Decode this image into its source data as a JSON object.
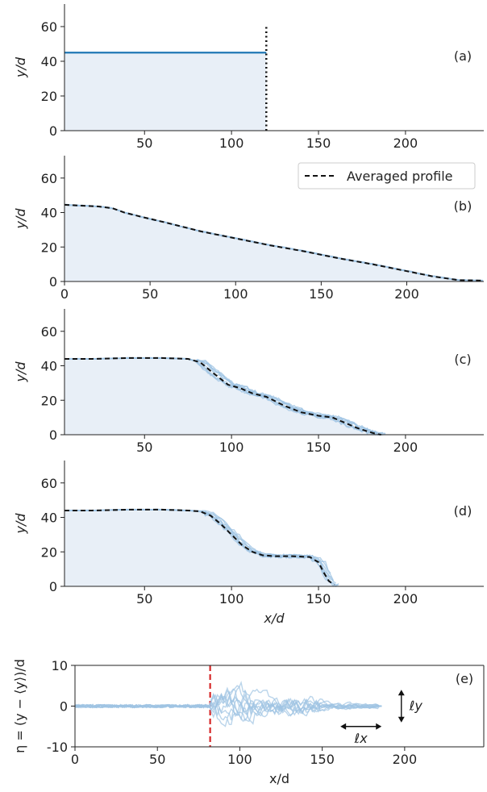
{
  "colors": {
    "profile": "#1f77b4",
    "fill": "#e8eff7",
    "realization": "#9ec3e3",
    "averaged": "#111111",
    "marker_dashed": "#d62728"
  },
  "chart_data": [
    {
      "id": "a",
      "type": "area",
      "panel_label": "(a)",
      "ylabel": "y/d",
      "xlabel": "",
      "xlim": [
        4,
        245
      ],
      "ylim": [
        0,
        73
      ],
      "xticks": [
        50,
        100,
        150,
        200
      ],
      "yticks": [
        0,
        20,
        40,
        60
      ],
      "grid": false,
      "series": [
        {
          "x": [
            4,
            120
          ],
          "y": [
            45,
            45
          ]
        }
      ],
      "vline": {
        "x": 120,
        "y_top": 60,
        "style": "dotted"
      }
    },
    {
      "id": "b",
      "type": "area",
      "panel_label": "(b)",
      "ylabel": "y/d",
      "xlabel": "",
      "xlim": [
        0,
        245
      ],
      "ylim": [
        0,
        73
      ],
      "xticks": [
        0,
        50,
        100,
        150,
        200
      ],
      "yticks": [
        0,
        20,
        40,
        60
      ],
      "grid": false,
      "legend": {
        "position": "top-right",
        "entries": [
          "Averaged profile"
        ]
      },
      "averaged_profile": {
        "x": [
          0,
          10,
          20,
          28,
          35,
          45,
          60,
          80,
          100,
          120,
          140,
          160,
          180,
          200,
          215,
          230,
          245
        ],
        "y": [
          44.5,
          44,
          43.5,
          42.5,
          40,
          37.5,
          34,
          29,
          25,
          21,
          17.5,
          13.5,
          10,
          6,
          3,
          0.8,
          0.5
        ]
      },
      "realizations": 6
    },
    {
      "id": "c",
      "type": "area",
      "panel_label": "(c)",
      "ylabel": "y/d",
      "xlabel": "",
      "xlim": [
        4,
        245
      ],
      "ylim": [
        0,
        73
      ],
      "xticks": [
        50,
        100,
        150,
        200
      ],
      "yticks": [
        0,
        20,
        40,
        60
      ],
      "grid": false,
      "averaged_profile": {
        "x": [
          4,
          20,
          40,
          60,
          75,
          82,
          88,
          93,
          98,
          105,
          112,
          120,
          130,
          140,
          150,
          158,
          165,
          172,
          178,
          183,
          186
        ],
        "y": [
          44,
          44,
          44.5,
          44.5,
          44,
          42,
          37,
          33,
          29,
          27,
          24,
          22,
          17,
          13,
          11,
          10,
          7,
          4,
          2,
          0.5,
          0
        ]
      },
      "realizations": 8
    },
    {
      "id": "d",
      "type": "area",
      "panel_label": "(d)",
      "ylabel": "y/d",
      "xlabel": "x/d",
      "xlim": [
        4,
        245
      ],
      "ylim": [
        0,
        73
      ],
      "xticks": [
        50,
        100,
        150,
        200
      ],
      "yticks": [
        0,
        20,
        40,
        60
      ],
      "grid": false,
      "averaged_profile": {
        "x": [
          4,
          20,
          40,
          60,
          75,
          82,
          88,
          94,
          100,
          106,
          112,
          118,
          125,
          135,
          145,
          150,
          153,
          156,
          159
        ],
        "y": [
          44,
          44,
          44.5,
          44.5,
          44,
          43.5,
          41,
          36,
          30,
          24,
          20,
          18,
          17.5,
          17.5,
          17,
          14,
          8,
          3,
          1
        ]
      },
      "realizations": 8
    },
    {
      "id": "e",
      "type": "line",
      "panel_label": "(e)",
      "ylabel": "η = (y − ⟨y⟩)/d",
      "xlabel": "x/d",
      "xlim": [
        0,
        248
      ],
      "ylim": [
        -10,
        10
      ],
      "xticks": [
        0,
        50,
        100,
        150,
        200
      ],
      "yticks": [
        -10,
        0,
        10
      ],
      "grid": false,
      "vline": {
        "x": 82,
        "style": "dashed"
      },
      "annotations": {
        "lx": "ℓx",
        "ly": "ℓy",
        "lx_arrow_x": [
          161,
          186
        ],
        "lx_arrow_y": -5,
        "ly_arrow_x": 198,
        "ly_arrow_y": [
          -4,
          4
        ]
      },
      "series_count": 10,
      "x_end": 186
    }
  ]
}
